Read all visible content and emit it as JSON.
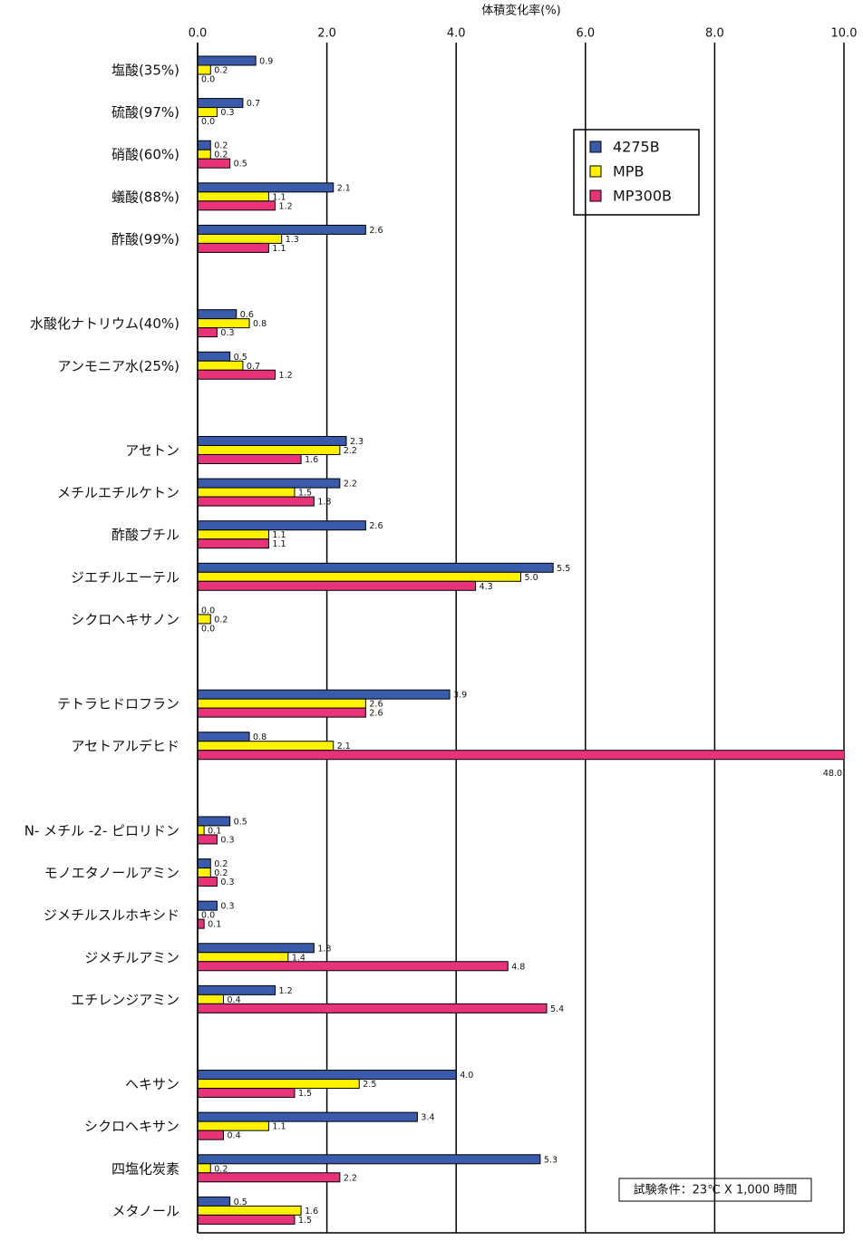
{
  "chart_data": {
    "type": "hbar",
    "x_label": "体積変化率(%)",
    "note": "試験条件：23℃ X 1,000 時間",
    "categories": [
      "塩酸(35%)",
      "硫酸(97%)",
      "硝酸(60%)",
      "蟻酸(88%)",
      "酢酸(99%)",
      null,
      "水酸化ナトリウム(40%)",
      "アンモニア水(25%)",
      null,
      "アセトン",
      "メチルエチルケトン",
      "酢酸ブチル",
      "ジエチルエーテル",
      "シクロヘキサノン",
      null,
      "テトラヒドロフラン",
      "アセトアルデヒド",
      null,
      "N- メチル -2- ピロリドン",
      "モノエタノールアミン",
      "ジメチルスルホキシド",
      "ジメチルアミン",
      "エチレンジアミン",
      null,
      "ヘキサン",
      "シクロヘキサン",
      "四塩化炭素",
      "メタノール"
    ],
    "series": [
      {
        "name": "4275B",
        "color": "#3a5bab",
        "values": [
          0.9,
          0.7,
          0.2,
          2.1,
          2.6,
          null,
          0.6,
          0.5,
          null,
          2.3,
          2.2,
          2.6,
          5.5,
          0,
          null,
          3.9,
          0.8,
          null,
          0.5,
          0.2,
          0.3,
          1.8,
          1.2,
          null,
          4,
          3.4,
          5.3,
          0.5
        ],
        "value_labels": [
          "0.9",
          "0.7",
          "0.2",
          "2.1",
          "2.6",
          null,
          "0.6",
          "0.5",
          null,
          "2.3",
          "2.2",
          "2.6",
          "5.5",
          "0.0",
          null,
          "3.9",
          "0.8",
          null,
          "0.5",
          "0.2",
          "0.3",
          "1.8",
          "1.2",
          null,
          "4.0",
          "3.4",
          "5.3",
          "0.5"
        ]
      },
      {
        "name": "MPB",
        "color": "#fff200",
        "values": [
          0.2,
          0.3,
          0.2,
          1.1,
          1.3,
          null,
          0.8,
          0.7,
          null,
          2.2,
          1.5,
          1.1,
          5,
          0.2,
          null,
          2.6,
          2.1,
          null,
          0.1,
          0.2,
          0,
          1.4,
          0.4,
          null,
          2.5,
          1.1,
          0.2,
          1.6
        ],
        "value_labels": [
          "0.2",
          "0.3",
          "0.2",
          "1.1",
          "1.3",
          null,
          "0.8",
          "0.7",
          null,
          "2.2",
          "1.5",
          "1.1",
          "5.0",
          "0.2",
          null,
          "2.6",
          "2.1",
          null,
          "0.1",
          "0.2",
          "0.0",
          "1.4",
          "0.4",
          null,
          "2.5",
          "1.1",
          "0.2",
          "1.6"
        ]
      },
      {
        "name": "MP300B",
        "color": "#e8327a",
        "values": [
          0,
          0,
          0.5,
          1.2,
          1.1,
          null,
          0.3,
          1.2,
          null,
          1.6,
          1.8,
          1.1,
          4.3,
          0,
          null,
          2.6,
          48,
          null,
          0.3,
          0.3,
          0.1,
          4.8,
          5.4,
          null,
          1.5,
          0.4,
          2.2,
          1.5
        ],
        "value_labels": [
          "0.0",
          "0.0",
          "0.5",
          "1.2",
          "1.1",
          null,
          "0.3",
          "1.2",
          null,
          "1.6",
          "1.8",
          "1.1",
          "4.3",
          "0.0",
          null,
          "2.6",
          "48.0",
          null,
          "0.3",
          "0.3",
          "0.1",
          "4.8",
          "5.4",
          null,
          "1.5",
          "0.4",
          "2.2",
          "1.5"
        ]
      }
    ],
    "xlim": [
      0,
      10
    ],
    "xticks": [
      {
        "value": 0,
        "label": "0.0"
      },
      {
        "value": 2,
        "label": "2.0"
      },
      {
        "value": 4,
        "label": "4.0"
      },
      {
        "value": 6,
        "label": "6.0"
      },
      {
        "value": 8,
        "label": "8.0"
      },
      {
        "value": 10,
        "label": "10.0"
      }
    ],
    "grid": true
  }
}
